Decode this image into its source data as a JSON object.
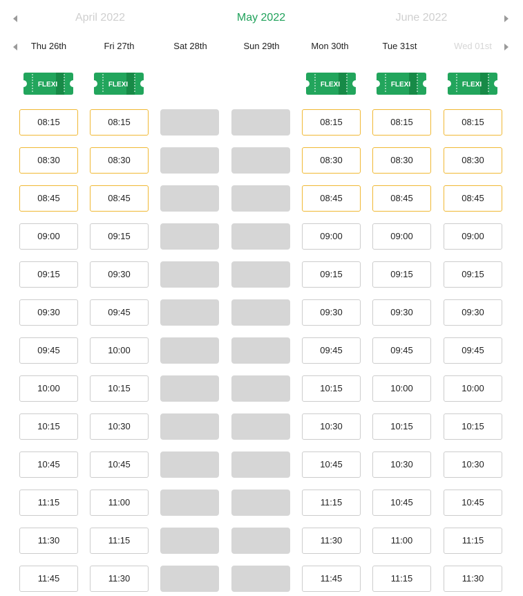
{
  "months": {
    "prev": "April 2022",
    "current": "May 2022",
    "next": "June 2022"
  },
  "days": [
    {
      "label": "Thu 26th",
      "disabled": false,
      "flexi": true,
      "flexi_label": "FLEXI",
      "blocked": false,
      "slots": [
        "08:15",
        "08:30",
        "08:45",
        "09:00",
        "09:15",
        "09:30",
        "09:45",
        "10:00",
        "10:15",
        "10:45",
        "11:15",
        "11:30",
        "11:45"
      ],
      "flexi_slots": 3
    },
    {
      "label": "Fri 27th",
      "disabled": false,
      "flexi": true,
      "flexi_label": "FLEXI",
      "blocked": false,
      "slots": [
        "08:15",
        "08:30",
        "08:45",
        "09:15",
        "09:30",
        "09:45",
        "10:00",
        "10:15",
        "10:30",
        "10:45",
        "11:00",
        "11:15",
        "11:30"
      ],
      "flexi_slots": 3
    },
    {
      "label": "Sat 28th",
      "disabled": false,
      "flexi": false,
      "flexi_label": "",
      "blocked": true,
      "slots": [
        "",
        "",
        "",
        "",
        "",
        "",
        "",
        "",
        "",
        "",
        "",
        "",
        ""
      ],
      "flexi_slots": 0
    },
    {
      "label": "Sun 29th",
      "disabled": false,
      "flexi": false,
      "flexi_label": "",
      "blocked": true,
      "slots": [
        "",
        "",
        "",
        "",
        "",
        "",
        "",
        "",
        "",
        "",
        "",
        "",
        ""
      ],
      "flexi_slots": 0
    },
    {
      "label": "Mon 30th",
      "disabled": false,
      "flexi": true,
      "flexi_label": "FLEXI",
      "blocked": false,
      "slots": [
        "08:15",
        "08:30",
        "08:45",
        "09:00",
        "09:15",
        "09:30",
        "09:45",
        "10:15",
        "10:30",
        "10:45",
        "11:15",
        "11:30",
        "11:45"
      ],
      "flexi_slots": 3
    },
    {
      "label": "Tue 31st",
      "disabled": false,
      "flexi": true,
      "flexi_label": "FLEXI",
      "blocked": false,
      "slots": [
        "08:15",
        "08:30",
        "08:45",
        "09:00",
        "09:15",
        "09:30",
        "09:45",
        "10:00",
        "10:15",
        "10:30",
        "10:45",
        "11:00",
        "11:15"
      ],
      "flexi_slots": 3
    },
    {
      "label": "Wed 01st",
      "disabled": true,
      "flexi": true,
      "flexi_label": "FLEXI",
      "blocked": false,
      "slots": [
        "08:15",
        "08:30",
        "08:45",
        "09:00",
        "09:15",
        "09:30",
        "09:45",
        "10:00",
        "10:15",
        "10:30",
        "10:45",
        "11:15",
        "11:30"
      ],
      "flexi_slots": 3
    }
  ],
  "colors": {
    "accent_green": "#1fa15a",
    "flexi_border": "#f0b833",
    "blocked_gray": "#d6d6d6"
  }
}
